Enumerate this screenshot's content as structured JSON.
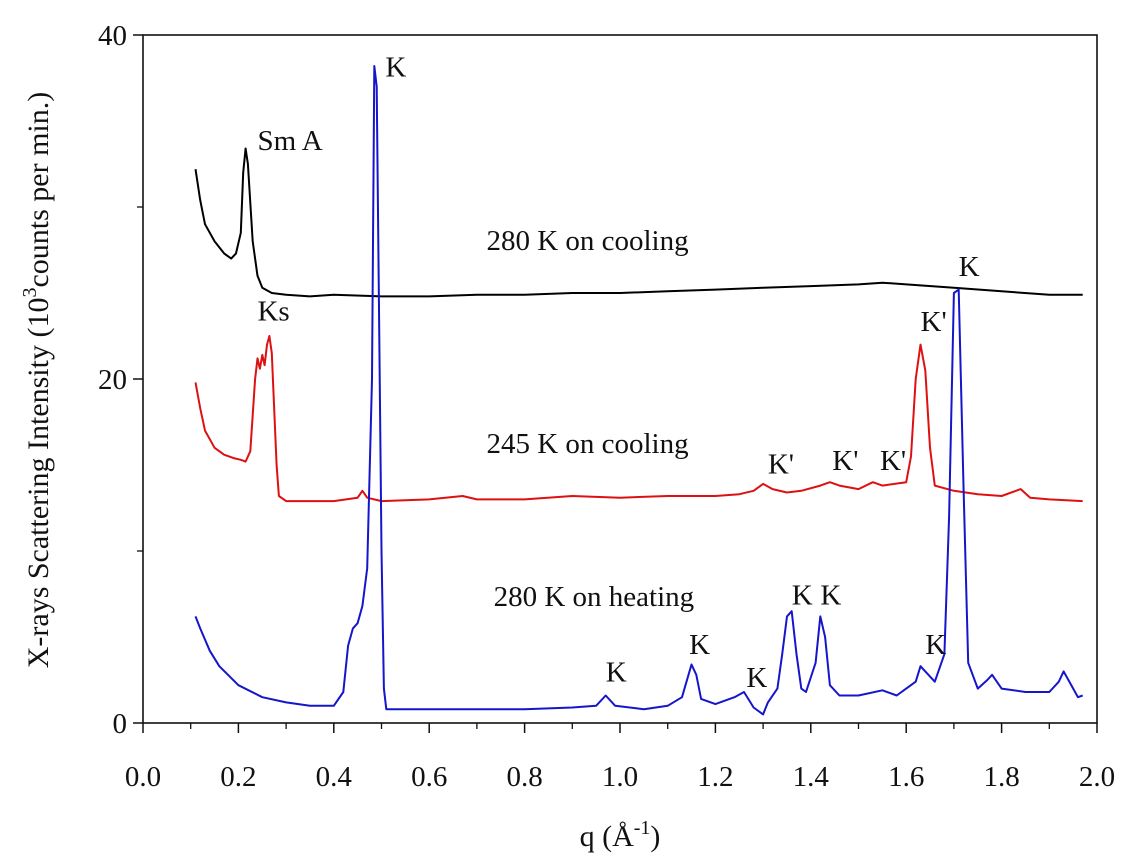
{
  "chart_data": {
    "type": "line",
    "title": "",
    "xlabel": "q (Å",
    "xlabel_sup": "-1",
    "xlabel_close": ")",
    "ylabel": "X-rays Scattering Intensity (10",
    "ylabel_sup": "3",
    "ylabel_rest": "counts per min.)",
    "xlim": [
      0.0,
      2.0
    ],
    "ylim": [
      0,
      40
    ],
    "xticks": [
      "0.0",
      "0.2",
      "0.4",
      "0.6",
      "0.8",
      "1.0",
      "1.2",
      "1.4",
      "1.6",
      "1.8",
      "2.0"
    ],
    "yticks": [
      "0",
      "20",
      "40"
    ],
    "grid": false,
    "series": [
      {
        "name": "280 K on cooling",
        "color": "#000000",
        "points": [
          [
            0.11,
            32.2
          ],
          [
            0.12,
            30.4
          ],
          [
            0.13,
            29.0
          ],
          [
            0.15,
            28.0
          ],
          [
            0.17,
            27.3
          ],
          [
            0.185,
            27.0
          ],
          [
            0.195,
            27.3
          ],
          [
            0.205,
            28.5
          ],
          [
            0.21,
            32.0
          ],
          [
            0.215,
            33.4
          ],
          [
            0.22,
            32.5
          ],
          [
            0.23,
            28.0
          ],
          [
            0.24,
            26.0
          ],
          [
            0.25,
            25.3
          ],
          [
            0.27,
            25.0
          ],
          [
            0.3,
            24.9
          ],
          [
            0.35,
            24.8
          ],
          [
            0.4,
            24.9
          ],
          [
            0.5,
            24.8
          ],
          [
            0.6,
            24.8
          ],
          [
            0.7,
            24.9
          ],
          [
            0.8,
            24.9
          ],
          [
            0.9,
            25.0
          ],
          [
            1.0,
            25.0
          ],
          [
            1.1,
            25.1
          ],
          [
            1.2,
            25.2
          ],
          [
            1.3,
            25.3
          ],
          [
            1.4,
            25.4
          ],
          [
            1.5,
            25.5
          ],
          [
            1.55,
            25.6
          ],
          [
            1.6,
            25.5
          ],
          [
            1.7,
            25.3
          ],
          [
            1.8,
            25.1
          ],
          [
            1.9,
            24.9
          ],
          [
            1.97,
            24.9
          ]
        ]
      },
      {
        "name": "245 K on cooling",
        "color": "#dd1111",
        "points": [
          [
            0.11,
            19.8
          ],
          [
            0.12,
            18.3
          ],
          [
            0.13,
            17.0
          ],
          [
            0.15,
            16.0
          ],
          [
            0.17,
            15.6
          ],
          [
            0.19,
            15.4
          ],
          [
            0.205,
            15.3
          ],
          [
            0.215,
            15.2
          ],
          [
            0.225,
            15.8
          ],
          [
            0.235,
            20.0
          ],
          [
            0.24,
            21.2
          ],
          [
            0.245,
            20.6
          ],
          [
            0.25,
            21.4
          ],
          [
            0.255,
            20.8
          ],
          [
            0.26,
            22.0
          ],
          [
            0.265,
            22.5
          ],
          [
            0.27,
            21.5
          ],
          [
            0.28,
            15.0
          ],
          [
            0.285,
            13.2
          ],
          [
            0.3,
            12.9
          ],
          [
            0.35,
            12.9
          ],
          [
            0.4,
            12.9
          ],
          [
            0.45,
            13.1
          ],
          [
            0.46,
            13.5
          ],
          [
            0.47,
            13.1
          ],
          [
            0.5,
            12.9
          ],
          [
            0.6,
            13.0
          ],
          [
            0.67,
            13.2
          ],
          [
            0.7,
            13.0
          ],
          [
            0.8,
            13.0
          ],
          [
            0.9,
            13.2
          ],
          [
            1.0,
            13.1
          ],
          [
            1.1,
            13.2
          ],
          [
            1.2,
            13.2
          ],
          [
            1.25,
            13.3
          ],
          [
            1.28,
            13.5
          ],
          [
            1.3,
            13.9
          ],
          [
            1.32,
            13.6
          ],
          [
            1.35,
            13.4
          ],
          [
            1.38,
            13.5
          ],
          [
            1.42,
            13.8
          ],
          [
            1.44,
            14.0
          ],
          [
            1.46,
            13.8
          ],
          [
            1.5,
            13.6
          ],
          [
            1.53,
            14.0
          ],
          [
            1.55,
            13.8
          ],
          [
            1.6,
            14.0
          ],
          [
            1.61,
            15.5
          ],
          [
            1.62,
            20.0
          ],
          [
            1.63,
            22.0
          ],
          [
            1.64,
            20.5
          ],
          [
            1.65,
            16.0
          ],
          [
            1.66,
            13.8
          ],
          [
            1.7,
            13.5
          ],
          [
            1.75,
            13.3
          ],
          [
            1.8,
            13.2
          ],
          [
            1.84,
            13.6
          ],
          [
            1.86,
            13.1
          ],
          [
            1.9,
            13.0
          ],
          [
            1.97,
            12.9
          ]
        ]
      },
      {
        "name": "280 K on heating",
        "color": "#1515cc",
        "points": [
          [
            0.11,
            6.2
          ],
          [
            0.12,
            5.5
          ],
          [
            0.14,
            4.2
          ],
          [
            0.16,
            3.3
          ],
          [
            0.2,
            2.2
          ],
          [
            0.25,
            1.5
          ],
          [
            0.3,
            1.2
          ],
          [
            0.35,
            1.0
          ],
          [
            0.4,
            1.0
          ],
          [
            0.42,
            1.8
          ],
          [
            0.43,
            4.5
          ],
          [
            0.44,
            5.5
          ],
          [
            0.45,
            5.8
          ],
          [
            0.46,
            6.8
          ],
          [
            0.47,
            9.0
          ],
          [
            0.48,
            20.0
          ],
          [
            0.485,
            38.2
          ],
          [
            0.49,
            37.0
          ],
          [
            0.5,
            10.0
          ],
          [
            0.505,
            2.0
          ],
          [
            0.51,
            0.8
          ],
          [
            0.6,
            0.8
          ],
          [
            0.7,
            0.8
          ],
          [
            0.8,
            0.8
          ],
          [
            0.9,
            0.9
          ],
          [
            0.95,
            1.0
          ],
          [
            0.97,
            1.6
          ],
          [
            0.99,
            1.0
          ],
          [
            1.05,
            0.8
          ],
          [
            1.1,
            1.0
          ],
          [
            1.13,
            1.5
          ],
          [
            1.15,
            3.4
          ],
          [
            1.16,
            2.8
          ],
          [
            1.17,
            1.4
          ],
          [
            1.2,
            1.1
          ],
          [
            1.24,
            1.5
          ],
          [
            1.26,
            1.8
          ],
          [
            1.28,
            0.9
          ],
          [
            1.3,
            0.5
          ],
          [
            1.31,
            1.2
          ],
          [
            1.33,
            2.0
          ],
          [
            1.34,
            4.0
          ],
          [
            1.35,
            6.2
          ],
          [
            1.36,
            6.5
          ],
          [
            1.37,
            4.0
          ],
          [
            1.38,
            2.0
          ],
          [
            1.39,
            1.8
          ],
          [
            1.41,
            3.5
          ],
          [
            1.42,
            6.2
          ],
          [
            1.43,
            5.0
          ],
          [
            1.44,
            2.2
          ],
          [
            1.46,
            1.6
          ],
          [
            1.5,
            1.6
          ],
          [
            1.55,
            1.9
          ],
          [
            1.58,
            1.6
          ],
          [
            1.6,
            2.0
          ],
          [
            1.62,
            2.4
          ],
          [
            1.63,
            3.3
          ],
          [
            1.64,
            3.0
          ],
          [
            1.66,
            2.4
          ],
          [
            1.68,
            4.0
          ],
          [
            1.69,
            12.0
          ],
          [
            1.7,
            25.0
          ],
          [
            1.71,
            25.2
          ],
          [
            1.72,
            14.0
          ],
          [
            1.73,
            3.5
          ],
          [
            1.75,
            2.0
          ],
          [
            1.77,
            2.5
          ],
          [
            1.78,
            2.8
          ],
          [
            1.8,
            2.0
          ],
          [
            1.85,
            1.8
          ],
          [
            1.9,
            1.8
          ],
          [
            1.92,
            2.4
          ],
          [
            1.93,
            3.0
          ],
          [
            1.95,
            2.0
          ],
          [
            1.96,
            1.5
          ],
          [
            1.97,
            1.6
          ]
        ]
      }
    ],
    "annotations": [
      {
        "text": "K",
        "x": 0.508,
        "y": 37.6
      },
      {
        "text": "Sm A",
        "x": 0.24,
        "y": 33.3
      },
      {
        "text": "280 K on cooling",
        "x": 0.72,
        "y": 27.5
      },
      {
        "text": "K",
        "x": 1.71,
        "y": 26.0
      },
      {
        "text": "Ks",
        "x": 0.24,
        "y": 23.4
      },
      {
        "text": "K'",
        "x": 1.63,
        "y": 22.8
      },
      {
        "text": "245 K on cooling",
        "x": 0.72,
        "y": 15.7
      },
      {
        "text": "K'",
        "x": 1.31,
        "y": 14.5
      },
      {
        "text": "K'",
        "x": 1.445,
        "y": 14.7
      },
      {
        "text": "K'",
        "x": 1.545,
        "y": 14.7
      },
      {
        "text": "280 K on heating",
        "x": 0.735,
        "y": 6.8
      },
      {
        "text": "K",
        "x": 1.36,
        "y": 6.9
      },
      {
        "text": "K",
        "x": 1.42,
        "y": 6.9
      },
      {
        "text": "K",
        "x": 0.97,
        "y": 2.4
      },
      {
        "text": "K",
        "x": 1.145,
        "y": 4.0
      },
      {
        "text": "K",
        "x": 1.265,
        "y": 2.1
      },
      {
        "text": "K",
        "x": 1.64,
        "y": 4.0
      }
    ]
  }
}
